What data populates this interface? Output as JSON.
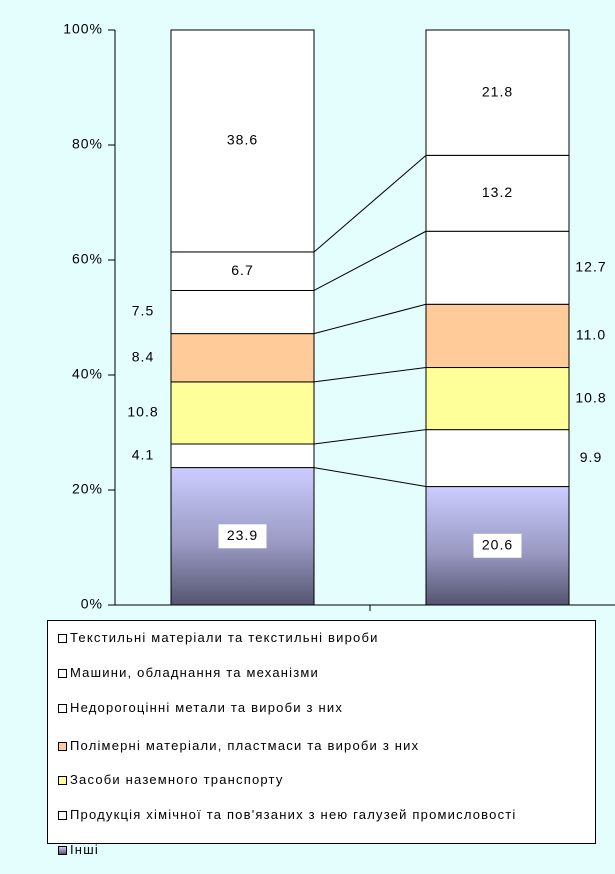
{
  "chart_data": {
    "type": "bar",
    "stacked": true,
    "categories": [
      null,
      null
    ],
    "ylim": [
      0,
      100
    ],
    "yticks": [
      {
        "value": 0,
        "label": "0%"
      },
      {
        "value": 20,
        "label": "20%"
      },
      {
        "value": 40,
        "label": "40%"
      },
      {
        "value": 60,
        "label": "60%"
      },
      {
        "value": 80,
        "label": "80%"
      },
      {
        "value": 100,
        "label": "100%"
      }
    ],
    "series": [
      {
        "name": "Інші",
        "color": "#ccccff",
        "values": [
          23.9,
          20.6
        ]
      },
      {
        "name": "Продукція хімічної та пов'язаних з нею галузей промисловості",
        "color": "#ffffff",
        "values": [
          4.1,
          9.9
        ]
      },
      {
        "name": "Засоби наземного транспорту",
        "color": "#ffff99",
        "values": [
          10.8,
          10.8
        ]
      },
      {
        "name": "Полімерні матеріали, пластмаси та вироби з них",
        "color": "#ffcc99",
        "values": [
          8.4,
          11.0
        ],
        "value_labels": [
          "8.4",
          "11.0"
        ]
      },
      {
        "name": "Недорогоцінні метали та вироби з них",
        "color": "#ffffff",
        "values": [
          7.5,
          12.7
        ]
      },
      {
        "name": "Машини, обладнання та механізми",
        "color": "#ffffff",
        "values": [
          6.7,
          13.2
        ]
      },
      {
        "name": "Текстильні матеріали та текстильні вироби",
        "color": "#ffffff",
        "values": [
          38.6,
          21.8
        ]
      }
    ],
    "legend": "bottom"
  }
}
